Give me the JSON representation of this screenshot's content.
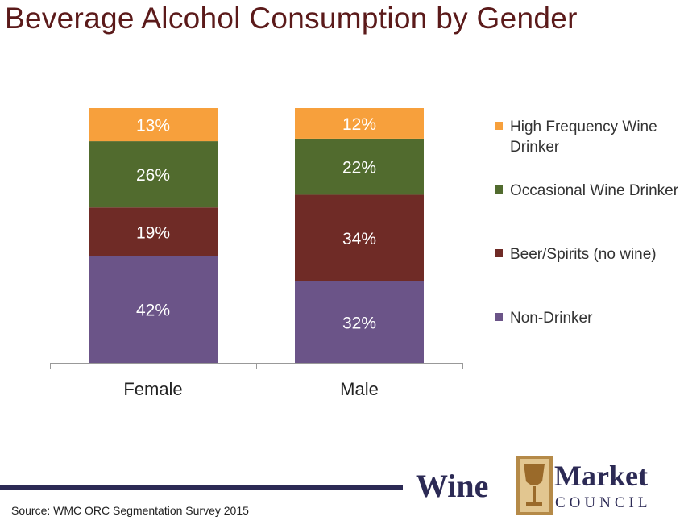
{
  "title": "Beverage Alcohol Consumption by Gender",
  "chart_data": {
    "type": "bar",
    "stacked": true,
    "categories": [
      "Female",
      "Male"
    ],
    "series": [
      {
        "name": "Non-Drinker",
        "values": [
          42,
          32
        ],
        "labels": [
          "42%",
          "32%"
        ],
        "color": "#6b5488"
      },
      {
        "name": "Beer/Spirits (no wine)",
        "values": [
          19,
          34
        ],
        "labels": [
          "19%",
          "34%"
        ],
        "color": "#6f2b26"
      },
      {
        "name": "Occasional Wine Drinker",
        "values": [
          26,
          22
        ],
        "labels": [
          "26%",
          "22%"
        ],
        "color": "#516b2e"
      },
      {
        "name": "High Frequency Wine Drinker",
        "values": [
          13,
          12
        ],
        "labels": [
          "13%",
          "12%"
        ],
        "color": "#f7a03c"
      }
    ],
    "ylim": [
      0,
      100
    ],
    "legend_position": "right",
    "grid": false
  },
  "legend": {
    "items": [
      {
        "label": "High Frequency Wine Drinker",
        "color": "#f7a03c"
      },
      {
        "label": "Occasional Wine Drinker",
        "color": "#516b2e"
      },
      {
        "label": "Beer/Spirits (no wine)",
        "color": "#6f2b26"
      },
      {
        "label": "Non-Drinker",
        "color": "#6b5488"
      }
    ]
  },
  "source": "Source: WMC ORC Segmentation Survey 2015",
  "logo": {
    "wine": "Wine",
    "market": "Market",
    "council": "COUNCIL"
  }
}
